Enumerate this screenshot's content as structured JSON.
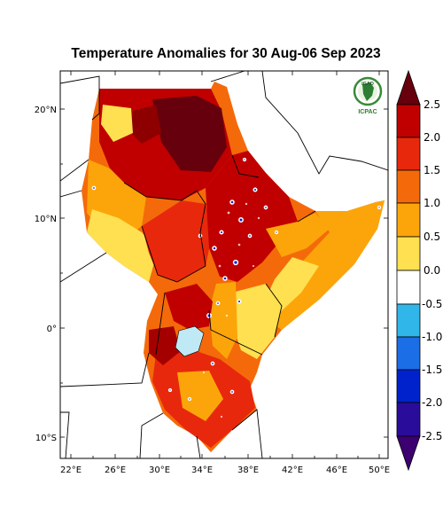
{
  "title": "Temperature Anomalies for 30 Aug-06 Sep 2023",
  "map": {
    "lon_ticks": [
      "22°E",
      "26°E",
      "30°E",
      "34°E",
      "38°E",
      "42°E",
      "46°E",
      "50°E"
    ],
    "lat_ticks": [
      "20°N",
      "10°N",
      "0°",
      "10°S"
    ]
  },
  "logo": {
    "top_text": "IGAD",
    "bottom_text": "ICPAC"
  },
  "colorbar": {
    "labels": [
      "2.5",
      "2.0",
      "1.5",
      "1.0",
      "0.5",
      "0.0",
      "-0.5",
      "-1.0",
      "-1.5",
      "-2.0",
      "-2.5"
    ],
    "colors": {
      "above_2_5": "#67000d",
      "2_0_to_2_5": "#c00000",
      "1_5_to_2_0": "#e8280c",
      "1_0_to_1_5": "#f46a0a",
      "0_5_to_1_0": "#fca50a",
      "0_0_to_0_5": "#fee050",
      "neutral": "#ffffff",
      "m0_5_to_0_0": "#31b6ea",
      "m1_0_to_m0_5": "#1c6ee6",
      "m1_5_to_m1_0": "#0022cc",
      "m2_0_to_m1_5": "#2a0c9a",
      "m2_5_to_m2_0": "#3d0070",
      "below_m2_5": "#1a0033"
    }
  }
}
